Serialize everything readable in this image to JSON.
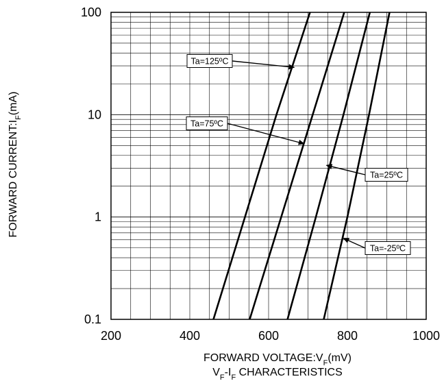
{
  "chart_data": {
    "type": "line",
    "title": "",
    "caption": {
      "main": "V",
      "sub1": "F",
      "mid": "-I",
      "sub2": "F",
      "rest": " CHARACTERISTICS"
    },
    "xlabel": {
      "main": "FORWARD VOLTAGE:V",
      "sub": "F",
      "rest": "(mV)"
    },
    "ylabel": {
      "main": "FORWARD CURRENT:I",
      "sub": "F",
      "rest": "(mA)"
    },
    "xscale": "linear",
    "yscale": "log",
    "xlim": [
      200,
      1000
    ],
    "ylim": [
      0.1,
      100
    ],
    "x_ticks": [
      "200",
      "400",
      "600",
      "800",
      "1000"
    ],
    "y_ticks": [
      "0.1",
      "1",
      "10",
      "100"
    ],
    "grid": true,
    "series": [
      {
        "name": "Ta=125ºC",
        "color": "#000000",
        "points": [
          [
            460,
            0.1
          ],
          [
            540,
            1
          ],
          [
            620,
            10
          ],
          [
            705,
            100
          ]
        ]
      },
      {
        "name": "Ta=75ºC",
        "color": "#000000",
        "points": [
          [
            552,
            0.1
          ],
          [
            632,
            1
          ],
          [
            712,
            10
          ],
          [
            792,
            100
          ]
        ]
      },
      {
        "name": "Ta=25ºC",
        "color": "#000000",
        "points": [
          [
            648,
            0.1
          ],
          [
            720,
            1
          ],
          [
            790,
            10
          ],
          [
            857,
            100
          ]
        ]
      },
      {
        "name": "Ta=-25ºC",
        "color": "#000000",
        "points": [
          [
            740,
            0.1
          ],
          [
            800,
            1
          ],
          [
            855,
            10
          ],
          [
            907,
            100
          ]
        ]
      }
    ],
    "annotations": [
      {
        "text": "Ta=125ºC",
        "arrow_to": [
          665,
          29
        ]
      },
      {
        "text": "Ta=75ºC",
        "arrow_to": [
          690,
          5.2
        ]
      },
      {
        "text": "Ta=25ºC",
        "arrow_to": [
          747,
          3.2
        ]
      },
      {
        "text": "Ta=-25ºC",
        "arrow_to": [
          790,
          0.62
        ]
      }
    ]
  }
}
